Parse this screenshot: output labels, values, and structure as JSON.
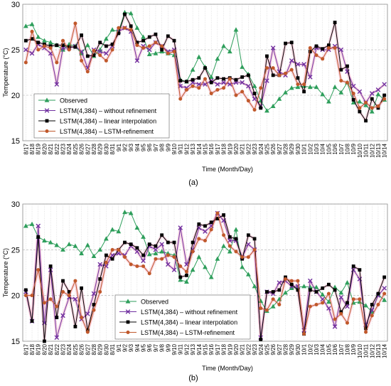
{
  "chart_data": [
    {
      "type": "line",
      "panel_label": "(a)",
      "xlabel": "Time (Month/Day)",
      "ylabel": "Temperature (°C)",
      "ylim": [
        15,
        30
      ],
      "yticks": [
        15,
        20,
        25,
        30
      ],
      "x": [
        "8/17",
        "8/18",
        "8/19",
        "8/20",
        "8/21",
        "8/22",
        "8/23",
        "8/24",
        "8/25",
        "8/26",
        "8/27",
        "8/28",
        "8/29",
        "8/30",
        "8/31",
        "9/1",
        "9/2",
        "9/3",
        "9/4",
        "9/5",
        "9/6",
        "9/7",
        "9/8",
        "9/9",
        "9/10",
        "9/11",
        "9/12",
        "9/13",
        "9/14",
        "9/15",
        "9/16",
        "9/17",
        "9/18",
        "9/19",
        "9/20",
        "9/21",
        "9/22",
        "9/23",
        "9/24",
        "9/25",
        "9/26",
        "9/27",
        "9/28",
        "9/29",
        "9/30",
        "10/1",
        "10/2",
        "10/3",
        "10/4",
        "10/5",
        "10/6",
        "10/7",
        "10/8",
        "10/9",
        "10/10",
        "10/11",
        "10/12",
        "10/13",
        "10/14"
      ],
      "grid": "vertical-dotted, horizontal-dashed",
      "legend": "lower-left",
      "series": [
        {
          "name": "Observed",
          "color": "#2e9e5b",
          "marker": "triangle",
          "values": [
            27.6,
            27.8,
            26.4,
            26.0,
            25.8,
            25.5,
            25.0,
            25.6,
            25.4,
            24.6,
            25.5,
            24.3,
            25.0,
            26.2,
            27.2,
            27.0,
            29.1,
            29.0,
            27.4,
            26.4,
            24.5,
            24.6,
            24.8,
            24.6,
            24.4,
            21.7,
            21.5,
            22.8,
            24.2,
            23.1,
            22.0,
            24.0,
            25.4,
            24.8,
            27.2,
            23.1,
            22.3,
            21.0,
            19.4,
            18.3,
            18.8,
            19.6,
            20.3,
            20.8,
            20.9,
            21.0,
            20.9,
            20.9,
            20.1,
            19.3,
            20.9,
            20.3,
            21.4,
            19.2,
            19.3,
            18.9,
            18.2,
            20.1,
            19.5
          ]
        },
        {
          "name": "LSTM(4,384) – without refinement",
          "color": "#7030a0",
          "marker": "x",
          "values": [
            25.0,
            24.6,
            25.6,
            25.2,
            24.6,
            21.2,
            25.2,
            25.2,
            25.4,
            24.8,
            23.0,
            25.0,
            24.8,
            24.6,
            25.4,
            27.0,
            27.4,
            27.0,
            23.8,
            25.4,
            25.0,
            25.8,
            25.4,
            24.8,
            25.0,
            21.0,
            20.8,
            21.4,
            21.2,
            21.2,
            21.6,
            21.2,
            21.4,
            21.2,
            21.4,
            21.4,
            21.0,
            19.6,
            18.8,
            21.6,
            25.2,
            22.6,
            22.2,
            23.8,
            23.4,
            23.4,
            22.0,
            25.2,
            25.0,
            25.0,
            25.4,
            25.0,
            22.6,
            21.0,
            20.4,
            19.2,
            20.2,
            20.6,
            21.2
          ]
        },
        {
          "name": "LSTM(4,384) – linear interpolation",
          "color": "#000000",
          "marker": "square",
          "values": [
            26.0,
            26.2,
            25.8,
            25.6,
            25.4,
            25.5,
            25.5,
            25.3,
            25.3,
            26.6,
            24.3,
            24.4,
            25.8,
            25.4,
            25.6,
            26.8,
            28.9,
            27.6,
            25.8,
            26.0,
            26.4,
            26.7,
            25.0,
            26.5,
            26.0,
            21.6,
            21.5,
            21.7,
            21.9,
            23.0,
            21.4,
            21.9,
            21.8,
            21.9,
            21.7,
            22.0,
            22.2,
            20.2,
            18.6,
            24.3,
            22.2,
            22.2,
            25.7,
            25.8,
            21.9,
            20.4,
            24.8,
            25.4,
            25.1,
            25.5,
            28.0,
            22.8,
            23.2,
            19.5,
            18.2,
            17.2,
            19.6,
            18.6,
            20.0
          ]
        },
        {
          "name": "LSTM(4,384) – LSTM-refinement",
          "color": "#c0582b",
          "marker": "circle",
          "values": [
            23.6,
            27.0,
            25.0,
            25.4,
            25.2,
            23.6,
            26.0,
            25.0,
            27.9,
            23.8,
            22.6,
            24.9,
            24.4,
            23.8,
            25.0,
            27.4,
            27.4,
            27.2,
            25.5,
            25.2,
            25.4,
            25.8,
            25.4,
            24.6,
            24.8,
            19.6,
            20.6,
            21.0,
            20.8,
            21.8,
            20.2,
            20.6,
            20.8,
            21.8,
            20.0,
            20.4,
            19.4,
            18.4,
            20.8,
            23.0,
            23.0,
            22.2,
            22.4,
            22.8,
            21.2,
            21.2,
            25.2,
            24.4,
            24.0,
            25.2,
            25.2,
            21.6,
            21.4,
            20.2,
            18.6,
            19.2,
            18.6,
            18.8,
            19.6
          ]
        }
      ]
    },
    {
      "type": "line",
      "panel_label": "(b)",
      "xlabel": "Time (Month/Day)",
      "ylabel": "Temperature (°C)",
      "ylim": [
        15,
        30
      ],
      "yticks": [
        15,
        20,
        25,
        30
      ],
      "x": [
        "8/17",
        "8/18",
        "8/19",
        "8/20",
        "8/21",
        "8/22",
        "8/23",
        "8/24",
        "8/25",
        "8/26",
        "8/27",
        "8/28",
        "8/29",
        "8/30",
        "8/31",
        "9/1",
        "9/2",
        "9/3",
        "9/4",
        "9/5",
        "9/6",
        "9/7",
        "9/8",
        "9/9",
        "9/10",
        "9/11",
        "9/12",
        "9/13",
        "9/14",
        "9/15",
        "9/16",
        "9/17",
        "9/18",
        "9/19",
        "9/20",
        "9/21",
        "9/22",
        "9/23",
        "9/24",
        "9/25",
        "9/26",
        "9/27",
        "9/28",
        "9/29",
        "9/30",
        "10/1",
        "10/2",
        "10/3",
        "10/4",
        "10/5",
        "10/6",
        "10/7",
        "10/8",
        "10/9",
        "10/10",
        "10/11",
        "10/12",
        "10/13",
        "10/14"
      ],
      "grid": "vertical-dotted, horizontal-dashed",
      "legend": "lower-center",
      "series": [
        {
          "name": "Observed",
          "color": "#2e9e5b",
          "marker": "triangle",
          "values": [
            27.6,
            27.8,
            26.4,
            26.0,
            25.8,
            25.5,
            25.0,
            25.6,
            25.4,
            24.6,
            25.5,
            24.3,
            25.0,
            26.2,
            27.2,
            27.0,
            29.1,
            29.0,
            27.4,
            26.4,
            24.5,
            24.6,
            24.8,
            24.6,
            24.4,
            21.7,
            21.5,
            22.8,
            24.2,
            23.1,
            22.0,
            24.0,
            25.4,
            24.8,
            27.2,
            23.1,
            22.3,
            21.0,
            19.4,
            18.3,
            18.8,
            19.6,
            20.3,
            20.8,
            20.9,
            21.0,
            20.9,
            20.9,
            20.1,
            19.3,
            20.9,
            20.3,
            21.4,
            19.2,
            19.3,
            18.9,
            18.2,
            20.1,
            19.5
          ]
        },
        {
          "name": "LSTM(4,384) – without refinement",
          "color": "#7030a0",
          "marker": "x",
          "values": [
            20.4,
            17.2,
            27.6,
            17.0,
            22.8,
            15.4,
            17.8,
            19.8,
            19.6,
            17.4,
            18.0,
            20.2,
            23.4,
            23.2,
            24.4,
            24.6,
            24.4,
            25.4,
            24.8,
            23.8,
            25.4,
            25.0,
            25.6,
            23.4,
            22.8,
            27.4,
            23.4,
            25.0,
            27.4,
            27.0,
            27.6,
            29.0,
            28.2,
            26.0,
            26.0,
            24.2,
            25.6,
            25.0,
            15.4,
            20.4,
            20.2,
            21.4,
            21.6,
            21.0,
            21.0,
            16.2,
            21.6,
            20.4,
            19.6,
            18.6,
            16.6,
            19.8,
            18.8,
            22.8,
            21.8,
            16.8,
            18.4,
            20.0,
            20.8
          ]
        },
        {
          "name": "LSTM(4,384) – linear interpolation",
          "color": "#000000",
          "marker": "square",
          "values": [
            20.6,
            17.2,
            26.4,
            15.0,
            23.2,
            17.6,
            21.6,
            20.4,
            16.6,
            20.8,
            16.2,
            19.0,
            21.8,
            24.4,
            24.0,
            25.0,
            25.8,
            25.6,
            25.2,
            24.4,
            25.6,
            25.4,
            26.6,
            25.8,
            25.8,
            22.0,
            22.2,
            25.8,
            27.8,
            27.6,
            28.0,
            28.4,
            28.8,
            26.4,
            26.2,
            24.0,
            26.6,
            26.2,
            15.2,
            20.4,
            20.4,
            20.6,
            22.0,
            21.2,
            20.6,
            15.8,
            20.6,
            20.4,
            20.8,
            21.2,
            20.6,
            18.2,
            19.2,
            23.2,
            22.8,
            16.4,
            19.0,
            20.2,
            22.0
          ]
        },
        {
          "name": "LSTM(4,384) – LSTM-refinement",
          "color": "#c0582b",
          "marker": "circle",
          "values": [
            20.0,
            20.0,
            22.8,
            19.2,
            19.6,
            18.8,
            20.4,
            20.0,
            21.6,
            17.6,
            16.0,
            18.4,
            20.4,
            23.6,
            25.0,
            25.0,
            24.2,
            23.4,
            23.2,
            23.2,
            22.4,
            24.0,
            24.0,
            24.4,
            24.2,
            23.2,
            22.6,
            24.8,
            26.2,
            26.0,
            27.2,
            29.0,
            26.6,
            25.4,
            24.8,
            24.2,
            24.2,
            25.0,
            18.6,
            18.4,
            19.6,
            19.0,
            21.8,
            21.6,
            21.6,
            15.8,
            18.8,
            19.0,
            19.2,
            20.2,
            17.4,
            18.0,
            17.0,
            19.6,
            19.6,
            16.0,
            17.8,
            19.0,
            20.2
          ]
        }
      ]
    }
  ]
}
